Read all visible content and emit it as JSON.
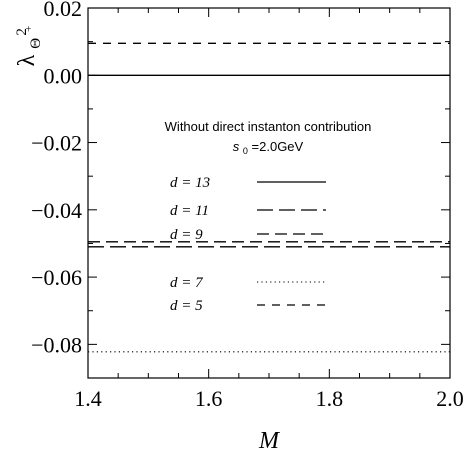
{
  "chart_data": {
    "type": "line",
    "xlabel": "M",
    "ylabel": "λ²Θ+",
    "ylabel_parts": {
      "base": "λ",
      "sup": "2",
      "sub": "Θ",
      "subsup": "+"
    },
    "xlim": [
      1.4,
      2.0
    ],
    "ylim": [
      -0.09,
      0.02
    ],
    "x_ticks": [
      1.4,
      1.6,
      1.8,
      2.0
    ],
    "x_tick_labels": [
      "1.4",
      "1.6",
      "1.8",
      "2.0"
    ],
    "y_ticks": [
      -0.08,
      -0.06,
      -0.04,
      -0.02,
      0.0,
      0.02
    ],
    "y_tick_labels": [
      "−0.08",
      "−0.06",
      "−0.04",
      "−0.02",
      "0.00",
      "0.02"
    ],
    "grid": false,
    "annotations": [
      "Without direct instanton contribution",
      "s0=2.0GeV"
    ],
    "annotation_parts": {
      "s_base": "s",
      "s_sub": "0",
      "s_rest": "=2.0GeV"
    },
    "series": [
      {
        "name": "d = 13",
        "style": "solid",
        "x": [
          1.4,
          2.0
        ],
        "y": [
          0.0,
          0.0
        ]
      },
      {
        "name": "d = 11",
        "style": "long-dash",
        "x": [
          1.4,
          2.0
        ],
        "y": [
          -0.051,
          -0.051
        ]
      },
      {
        "name": "d = 9",
        "style": "dash",
        "x": [
          1.4,
          2.0
        ],
        "y": [
          -0.0495,
          -0.0495
        ]
      },
      {
        "name": "d = 7",
        "style": "dotted",
        "x": [
          1.4,
          2.0
        ],
        "y": [
          -0.0822,
          -0.0822
        ]
      },
      {
        "name": "d = 5",
        "style": "short-dash",
        "x": [
          1.4,
          2.0
        ],
        "y": [
          0.0095,
          0.0095
        ]
      }
    ],
    "legend_order": [
      0,
      1,
      2,
      3,
      4
    ],
    "legend_placement": "center"
  }
}
